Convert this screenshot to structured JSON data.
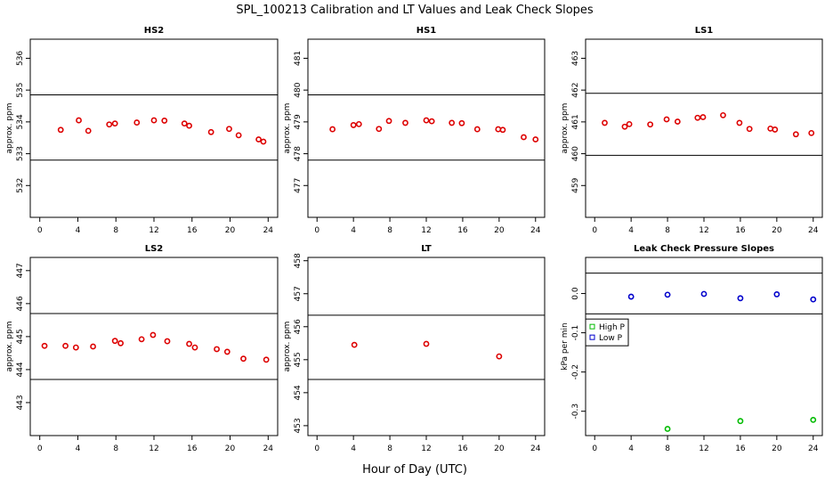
{
  "title": "SPL_100213  Calibration and LT Values and Leak Check Slopes",
  "xlabel": "Hour of Day (UTC)",
  "colors": {
    "red_points": "#dd0000",
    "high_p": "#00bb00",
    "low_p": "#0000cc",
    "lines": "#000000"
  },
  "chart_data": [
    {
      "type": "scatter",
      "title": "HS2",
      "ylabel": "approx. ppm",
      "xlim": [
        -1,
        25
      ],
      "ylim": [
        531,
        536.6
      ],
      "xticks": [
        "0",
        "4",
        "8",
        "12",
        "16",
        "20",
        "24"
      ],
      "yticks": [
        "532",
        "533",
        "534",
        "535",
        "536"
      ],
      "hlines": [
        532.8,
        534.85
      ],
      "series": [
        {
          "name": "HS2",
          "color": "#dd0000",
          "x": [
            2.2,
            4.1,
            5.1,
            7.3,
            7.9,
            10.2,
            12.0,
            13.1,
            15.2,
            15.7,
            18.0,
            19.9,
            20.9,
            23.0,
            23.5
          ],
          "y": [
            533.75,
            534.05,
            533.72,
            533.92,
            533.95,
            533.98,
            534.05,
            534.04,
            533.95,
            533.88,
            533.68,
            533.78,
            533.58,
            533.45,
            533.38
          ]
        }
      ]
    },
    {
      "type": "scatter",
      "title": "HS1",
      "ylabel": "approx. ppm",
      "xlim": [
        -1,
        25
      ],
      "ylim": [
        476,
        481.6
      ],
      "xticks": [
        "0",
        "4",
        "8",
        "12",
        "16",
        "20",
        "24"
      ],
      "yticks": [
        "477",
        "478",
        "479",
        "480",
        "481"
      ],
      "hlines": [
        477.8,
        479.85
      ],
      "series": [
        {
          "name": "HS1",
          "color": "#dd0000",
          "x": [
            1.7,
            4.0,
            4.6,
            6.8,
            7.9,
            9.7,
            12.0,
            12.6,
            14.8,
            15.9,
            17.6,
            19.9,
            20.4,
            22.7,
            24.0
          ],
          "y": [
            478.77,
            478.9,
            478.93,
            478.78,
            479.03,
            478.97,
            479.05,
            479.02,
            478.97,
            478.96,
            478.77,
            478.77,
            478.75,
            478.52,
            478.45
          ]
        }
      ]
    },
    {
      "type": "scatter",
      "title": "LS1",
      "ylabel": "approx. ppm",
      "xlim": [
        -1,
        25
      ],
      "ylim": [
        458,
        463.6
      ],
      "xticks": [
        "0",
        "4",
        "8",
        "12",
        "16",
        "20",
        "24"
      ],
      "yticks": [
        "459",
        "460",
        "461",
        "462",
        "463"
      ],
      "hlines": [
        459.95,
        461.9
      ],
      "series": [
        {
          "name": "LS1",
          "color": "#dd0000",
          "x": [
            1.1,
            3.3,
            3.8,
            6.1,
            7.9,
            9.1,
            11.3,
            11.9,
            14.1,
            15.9,
            17.0,
            19.3,
            19.8,
            22.1,
            23.8
          ],
          "y": [
            460.97,
            460.85,
            460.93,
            460.92,
            461.08,
            461.01,
            461.13,
            461.15,
            461.21,
            460.97,
            460.78,
            460.79,
            460.76,
            460.61,
            460.65
          ]
        }
      ]
    },
    {
      "type": "scatter",
      "title": "LS2",
      "ylabel": "approx. ppm",
      "xlim": [
        -1,
        25
      ],
      "ylim": [
        442,
        447.4
      ],
      "xticks": [
        "0",
        "4",
        "8",
        "12",
        "16",
        "20",
        "24"
      ],
      "yticks": [
        "443",
        "444",
        "445",
        "446",
        "447"
      ],
      "hlines": [
        443.7,
        445.7
      ],
      "series": [
        {
          "name": "LS2",
          "color": "#dd0000",
          "x": [
            0.5,
            2.7,
            3.8,
            5.6,
            7.9,
            8.5,
            10.7,
            11.9,
            13.4,
            15.7,
            16.3,
            18.6,
            19.7,
            21.4,
            23.8
          ],
          "y": [
            444.72,
            444.72,
            444.67,
            444.7,
            444.87,
            444.8,
            444.92,
            445.05,
            444.86,
            444.78,
            444.67,
            444.62,
            444.54,
            444.33,
            444.3
          ]
        }
      ]
    },
    {
      "type": "scatter",
      "title": "LT",
      "ylabel": "approx. ppm",
      "xlim": [
        -1,
        25
      ],
      "ylim": [
        452.7,
        458.1
      ],
      "xticks": [
        "0",
        "4",
        "8",
        "12",
        "16",
        "20",
        "24"
      ],
      "yticks": [
        "453",
        "454",
        "455",
        "456",
        "457",
        "458"
      ],
      "hlines": [
        454.4,
        456.35
      ],
      "series": [
        {
          "name": "LT",
          "color": "#dd0000",
          "x": [
            4.1,
            12.0,
            20.0
          ],
          "y": [
            455.45,
            455.48,
            455.1
          ]
        }
      ]
    },
    {
      "type": "scatter",
      "title": "Leak Check Pressure Slopes",
      "ylabel": "kPa per min",
      "xlim": [
        -1,
        25
      ],
      "ylim": [
        -0.362,
        0.092
      ],
      "xticks": [
        "0",
        "4",
        "8",
        "12",
        "16",
        "20",
        "24"
      ],
      "yticks": [
        "0.0",
        "-0.1",
        "-0.2",
        "-0.3"
      ],
      "hlines": [
        0.052,
        -0.052
      ],
      "legend": {
        "position": "left",
        "items": [
          "High P",
          "Low P"
        ]
      },
      "series": [
        {
          "name": "High P",
          "color": "#00bb00",
          "marker": "circle",
          "x": [
            8.0,
            16.0,
            24.0
          ],
          "y": [
            -0.345,
            -0.325,
            -0.322
          ]
        },
        {
          "name": "Low P",
          "color": "#0000cc",
          "marker": "circle",
          "x": [
            4.0,
            8.0,
            12.0,
            16.0,
            20.0,
            24.0
          ],
          "y": [
            -0.008,
            -0.003,
            -0.001,
            -0.012,
            -0.002,
            -0.015
          ]
        }
      ]
    }
  ]
}
